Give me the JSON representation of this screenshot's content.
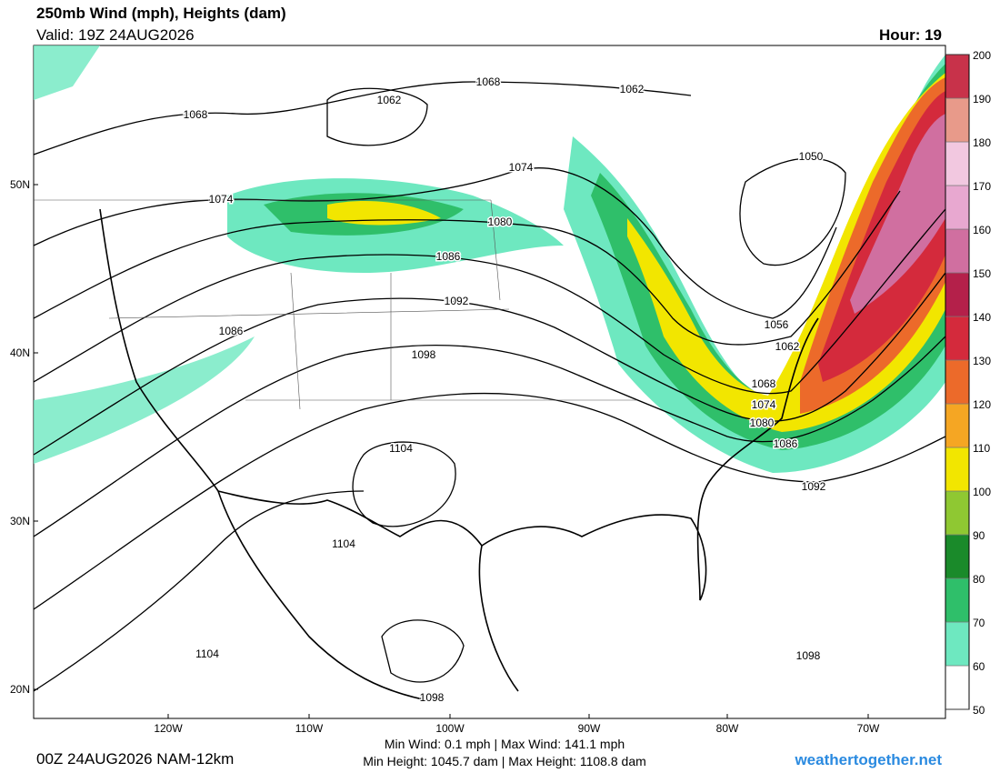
{
  "header": {
    "title": "250mb Wind (mph), Heights (dam)",
    "valid": "Valid: 19Z 24AUG2026",
    "hour": "Hour: 19"
  },
  "colorbar": {
    "ticks": [
      50,
      60,
      70,
      80,
      90,
      100,
      110,
      120,
      130,
      140,
      150,
      160,
      170,
      180,
      190,
      200
    ],
    "colors": [
      "#ffffff",
      "#6ee8c0",
      "#2fbf6a",
      "#1a8a2a",
      "#8fc832",
      "#f2e600",
      "#f5a623",
      "#ec6a2a",
      "#d42a3c",
      "#b4204a",
      "#d06fa0",
      "#e8a8d0",
      "#f2c8e0",
      "#e89a8a",
      "#c8324a"
    ]
  },
  "latitude_labels": [
    "50N",
    "40N",
    "30N",
    "20N"
  ],
  "longitude_labels": [
    "120W",
    "110W",
    "100W",
    "90W",
    "80W",
    "70W"
  ],
  "contour_labels": [
    1068,
    1062,
    1068,
    1062,
    1050,
    1074,
    1074,
    1080,
    1086,
    1092,
    1086,
    1098,
    1056,
    1062,
    1068,
    1074,
    1080,
    1086,
    1092,
    1104,
    1104,
    1104,
    1098,
    1098
  ],
  "footer": {
    "run": "00Z 24AUG2026 NAM-12km",
    "wind": "Min Wind:  0.1 mph | Max Wind: 141.1 mph",
    "height": "Min Height: 1045.7 dam | Max Height: 1108.8 dam",
    "site": "weathertogether.net"
  }
}
